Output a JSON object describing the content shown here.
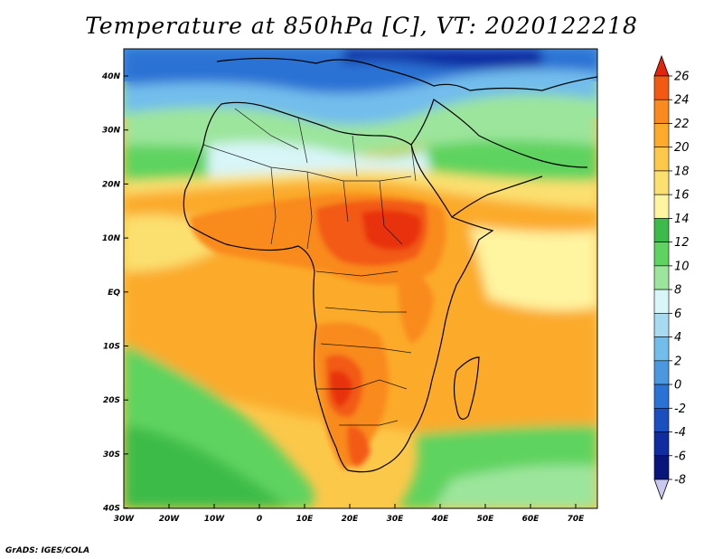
{
  "title": "Temperature at 850hPa [C], VT: 2020122218",
  "credit": "GrADS: IGES/COLA",
  "map": {
    "region": "Africa",
    "lat_labels": [
      "40N",
      "30N",
      "20N",
      "10N",
      "EQ",
      "10S",
      "20S",
      "30S",
      "40S"
    ],
    "lon_labels": [
      "30W",
      "20W",
      "10W",
      "0",
      "10E",
      "20E",
      "30E",
      "40E",
      "50E",
      "60E",
      "70E"
    ]
  },
  "colorbar": {
    "levels": [
      "26",
      "24",
      "22",
      "20",
      "18",
      "16",
      "14",
      "12",
      "10",
      "8",
      "6",
      "4",
      "2",
      "0",
      "-2",
      "-4",
      "-6",
      "-8"
    ],
    "colors": [
      "#e8320c",
      "#f25a14",
      "#f98a1e",
      "#fbaa2a",
      "#fcc84a",
      "#fbe070",
      "#fff4a0",
      "#3dbb4a",
      "#5fd35f",
      "#9ce59c",
      "#d8f5f8",
      "#a8daf2",
      "#72bdec",
      "#4a98e0",
      "#2a72d4",
      "#1a4fbf",
      "#0f2ca0",
      "#08157a"
    ],
    "top_color": "#e0250a",
    "bottom_color": "#c8c8f0"
  }
}
